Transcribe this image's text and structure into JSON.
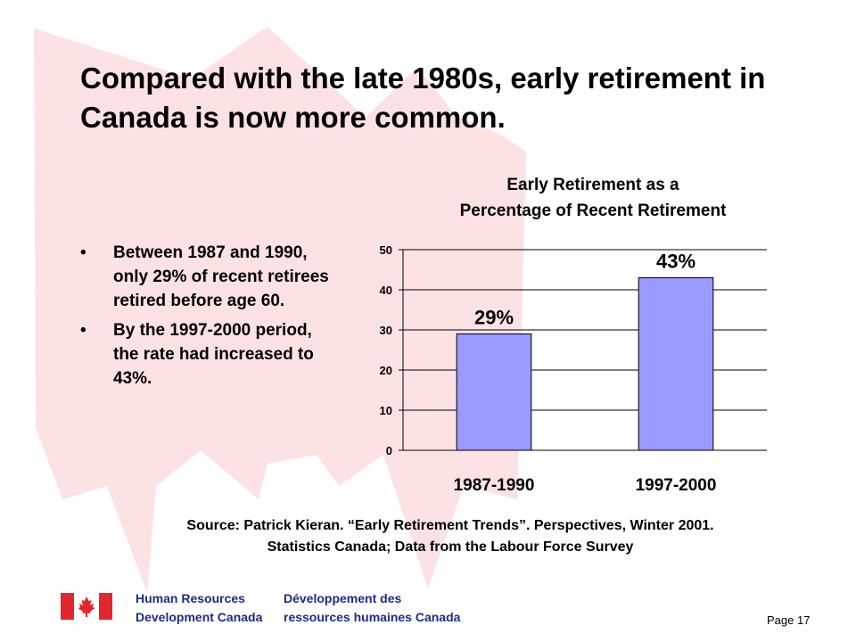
{
  "slide": {
    "title": "Compared with the late 1980s, early retirement in Canada is now more common.",
    "bullets": [
      "Between 1987 and 1990, only 29% of recent retirees retired before age 60.",
      "By the 1997-2000 period, the rate had increased to 43%."
    ],
    "bullet_glyph": "•",
    "source_line1": "Source: Patrick Kieran. “Early Retirement Trends”. Perspectives, Winter 2001.",
    "source_line2": "Statistics Canada; Data from  the Labour Force Survey",
    "page_number": "Page 17"
  },
  "footer": {
    "org_en_line1": "Human Resources",
    "org_en_line2": "Development Canada",
    "org_fr_line1": "Développement des",
    "org_fr_line2": "ressources humaines Canada"
  },
  "colors": {
    "bar_fill": "#9999ff",
    "leaf": "#fde2e4",
    "flag_red": "#e3262b",
    "wordmark": "#1f2a8c"
  },
  "chart_data": {
    "type": "bar",
    "title_line1": "Early Retirement as  a",
    "title_line2": "Percentage of Recent Retirement",
    "categories": [
      "1987-1990",
      "1997-2000"
    ],
    "values": [
      29,
      43
    ],
    "data_labels": [
      "29%",
      "43%"
    ],
    "ylim": [
      0,
      50
    ],
    "yticks": [
      0,
      10,
      20,
      30,
      40,
      50
    ],
    "grid": true,
    "legend": "none"
  }
}
